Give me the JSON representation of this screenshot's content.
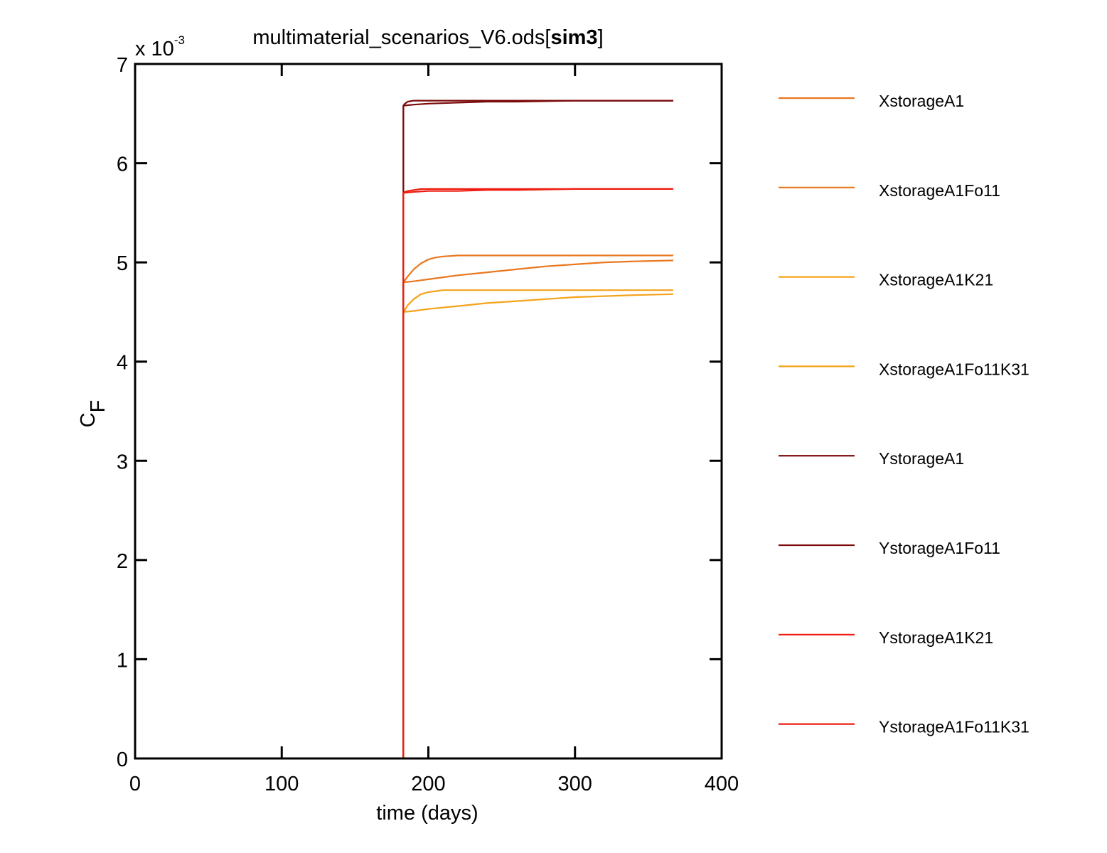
{
  "chart_data": {
    "type": "line",
    "title": "multimaterial_scenarios_V6.ods[sim3]",
    "title_main": "multimaterial_scenarios_V6.ods[",
    "title_bold": "sim3",
    "title_close": "]",
    "xlabel": "time (days)",
    "ylabel_main": "C",
    "ylabel_sub": "F",
    "y_multiplier": "x 10",
    "y_multiplier_exp": "-3",
    "xlim": [
      0,
      400
    ],
    "ylim": [
      0,
      7
    ],
    "x_ticks": [
      0,
      100,
      200,
      300,
      400
    ],
    "y_ticks": [
      0,
      1,
      2,
      3,
      4,
      5,
      6,
      7
    ],
    "x_tick_labels": [
      "0",
      "100",
      "200",
      "300",
      "400"
    ],
    "y_tick_labels": [
      "0",
      "1",
      "2",
      "3",
      "4",
      "5",
      "6",
      "7"
    ],
    "grid": false,
    "legend_position": "outside-right",
    "series": [
      {
        "name": "XstorageA1",
        "color": "#e8771f",
        "x": [
          183,
          183,
          184,
          186,
          190,
          195,
          200,
          205,
          210,
          220,
          240,
          260,
          300,
          340,
          367
        ],
        "y": [
          0,
          4.8,
          4.82,
          4.86,
          4.93,
          4.99,
          5.03,
          5.05,
          5.06,
          5.07,
          5.07,
          5.07,
          5.07,
          5.07,
          5.07
        ]
      },
      {
        "name": "XstorageA1Fo11",
        "color": "#e8771f",
        "x": [
          183,
          183,
          190,
          200,
          220,
          240,
          260,
          280,
          300,
          320,
          340,
          367
        ],
        "y": [
          0,
          4.8,
          4.81,
          4.83,
          4.87,
          4.9,
          4.93,
          4.96,
          4.98,
          5.0,
          5.01,
          5.02
        ]
      },
      {
        "name": "XstorageA1K21",
        "color": "#f5a31a",
        "x": [
          183,
          183,
          184,
          186,
          190,
          195,
          200,
          205,
          210,
          220,
          240,
          260,
          300,
          340,
          367
        ],
        "y": [
          0,
          4.5,
          4.52,
          4.57,
          4.63,
          4.68,
          4.7,
          4.71,
          4.72,
          4.72,
          4.72,
          4.72,
          4.72,
          4.72,
          4.72
        ]
      },
      {
        "name": "XstorageA1Fo11K31",
        "color": "#f5a31a",
        "x": [
          183,
          183,
          190,
          200,
          220,
          240,
          260,
          280,
          300,
          320,
          340,
          367
        ],
        "y": [
          0,
          4.5,
          4.51,
          4.53,
          4.56,
          4.59,
          4.61,
          4.63,
          4.65,
          4.66,
          4.67,
          4.68
        ]
      },
      {
        "name": "YstorageA1",
        "color": "#7a0a0a",
        "x": [
          183,
          183,
          184,
          186,
          190,
          195,
          200,
          210,
          240,
          300,
          367
        ],
        "y": [
          0,
          6.58,
          6.6,
          6.62,
          6.63,
          6.63,
          6.63,
          6.63,
          6.63,
          6.63,
          6.63
        ]
      },
      {
        "name": "YstorageA1Fo11",
        "color": "#7a0a0a",
        "x": [
          183,
          183,
          190,
          200,
          220,
          240,
          260,
          300,
          340,
          367
        ],
        "y": [
          0,
          6.58,
          6.59,
          6.6,
          6.61,
          6.62,
          6.62,
          6.63,
          6.63,
          6.63
        ]
      },
      {
        "name": "YstorageA1K21",
        "color": "#ee1c10",
        "x": [
          183,
          183,
          184,
          186,
          190,
          195,
          200,
          210,
          240,
          300,
          367
        ],
        "y": [
          0,
          5.7,
          5.71,
          5.72,
          5.73,
          5.74,
          5.74,
          5.74,
          5.74,
          5.74,
          5.74
        ]
      },
      {
        "name": "YstorageA1Fo11K31",
        "color": "#ee1c10",
        "x": [
          183,
          183,
          190,
          200,
          220,
          240,
          260,
          300,
          340,
          367
        ],
        "y": [
          0,
          5.7,
          5.71,
          5.72,
          5.72,
          5.73,
          5.73,
          5.74,
          5.74,
          5.74
        ]
      }
    ]
  }
}
